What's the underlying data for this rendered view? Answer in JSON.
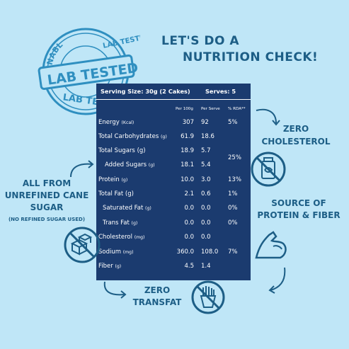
{
  "headline": {
    "line1": "LET'S DO A",
    "line2": "NUTRITION CHECK!"
  },
  "stamp": {
    "top_text": "NABL",
    "line1": "LAB TESTED",
    "line2": "LAB TESTED",
    "line3": "LAB TE"
  },
  "panel": {
    "serving_size": "Serving Size: 30g (2 Cakes)",
    "serves": "Serves: 5",
    "columns": {
      "per100": "Per 100g",
      "perserve": "Per Serve",
      "rda": "% RDA**"
    },
    "rows": [
      {
        "label": "Energy",
        "unit": "(Kcal)",
        "per100": "307",
        "perserve": "92",
        "rda": "5%"
      },
      {
        "label": "Total Carbohydrates",
        "unit": "(g)",
        "per100": "61.9",
        "perserve": "18.6",
        "rda": ""
      },
      {
        "label": "Total Sugars (g)",
        "unit": "",
        "per100": "18.9",
        "perserve": "5.7",
        "rda": ""
      },
      {
        "label": "Added Sugars",
        "unit": "(g)",
        "per100": "18.1",
        "perserve": "5.4",
        "rda": ""
      },
      {
        "label": "Protein",
        "unit": "(g)",
        "per100": "10.0",
        "perserve": "3.0",
        "rda": "13%"
      },
      {
        "label": "Total Fat (g)",
        "unit": "",
        "per100": "2.1",
        "perserve": "0.6",
        "rda": "1%"
      },
      {
        "label": "Saturated Fat",
        "unit": "(g)",
        "per100": "0.0",
        "perserve": "0.0",
        "rda": "0%"
      },
      {
        "label": "Trans Fat",
        "unit": "(g)",
        "per100": "0.0",
        "perserve": "0.0",
        "rda": "0%"
      },
      {
        "label": "Cholesterol",
        "unit": "(mg)",
        "per100": "0.0",
        "perserve": "0.0",
        "rda": ""
      },
      {
        "label": "Sodium",
        "unit": "(mg)",
        "per100": "360.0",
        "perserve": "108.0",
        "rda": "7%"
      },
      {
        "label": "Fiber",
        "unit": "(g)",
        "per100": "4.5",
        "perserve": "1.4",
        "rda": ""
      }
    ],
    "sugars_rda": "25%"
  },
  "callouts": {
    "cane": {
      "line1": "ALL FROM",
      "line2": "UNREFINED CANE",
      "line3": "SUGAR",
      "line4": "(NO REFINED SUGAR USED)"
    },
    "cholesterol": {
      "line1": "ZERO",
      "line2": "CHOLESTEROL"
    },
    "protein": {
      "line1": "SOURCE OF",
      "line2": "PROTEIN & FIBER"
    },
    "transfat": {
      "line1": "ZERO",
      "line2": "TRANSFAT"
    }
  },
  "colors": {
    "background": "#bfe6f7",
    "panel": "#1b3b6f",
    "accent": "#1d5e86",
    "stamp": "#2f8fc0"
  },
  "icons": [
    "lab-tested-stamp-icon",
    "sugar-cubes-crossed-icon",
    "oil-jar-crossed-icon",
    "flexed-arm-icon",
    "fries-crossed-icon",
    "curved-arrow-icon"
  ]
}
